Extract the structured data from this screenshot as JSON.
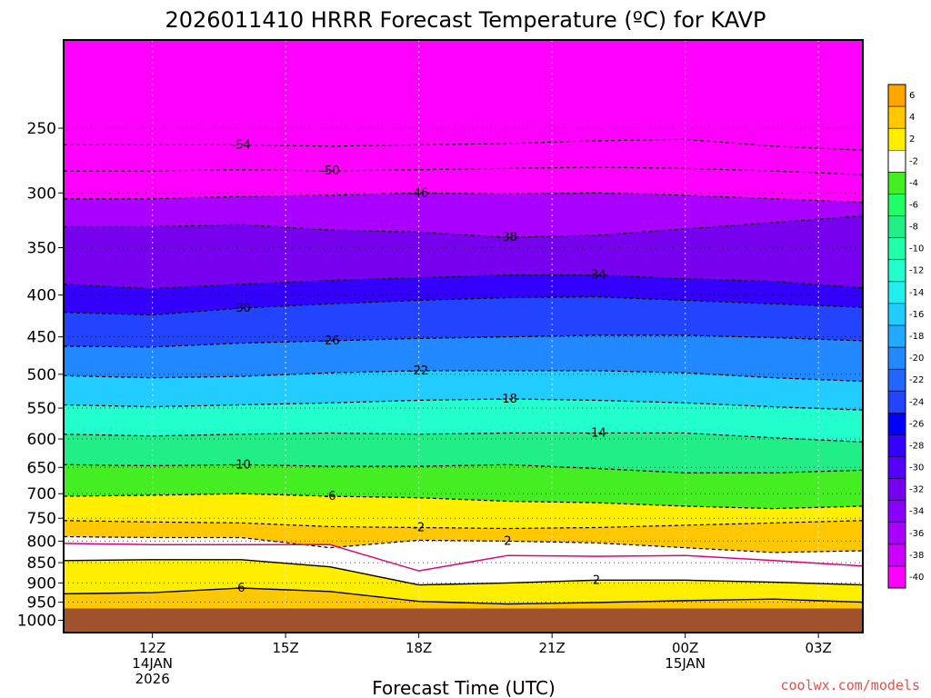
{
  "chart_data": {
    "type": "heatmap",
    "title": "2026011410 HRRR Forecast Temperature (ºC) for KAVP",
    "xlabel": "Forecast Time (UTC)",
    "ylabel": "",
    "credit": "coolwx.com/models",
    "x_ticks": [
      {
        "hour": 12,
        "lines": [
          "12Z",
          "14JAN",
          "2026"
        ]
      },
      {
        "hour": 15,
        "lines": [
          "15Z"
        ]
      },
      {
        "hour": 18,
        "lines": [
          "18Z"
        ]
      },
      {
        "hour": 21,
        "lines": [
          "21Z"
        ]
      },
      {
        "hour": 24,
        "lines": [
          "00Z",
          "15JAN"
        ]
      },
      {
        "hour": 27,
        "lines": [
          "03Z"
        ]
      }
    ],
    "xlim_hours": [
      10,
      28
    ],
    "y_scale": "log-pressure",
    "ylim_hpa": [
      1035,
      195
    ],
    "y_ticks": [
      250,
      300,
      350,
      400,
      450,
      500,
      550,
      600,
      650,
      700,
      750,
      800,
      850,
      900,
      950,
      1000
    ],
    "ground_level_hpa": 967,
    "ground_color": "#a0522d",
    "colorbar": {
      "labels": [
        "6",
        "4",
        "2",
        "-2",
        "-4",
        "-6",
        "-8",
        "-10",
        "-12",
        "-14",
        "-16",
        "-18",
        "-20",
        "-22",
        "-24",
        "-26",
        "-28",
        "-30",
        "-32",
        "-34",
        "-36",
        "-38",
        "-40"
      ],
      "colors": [
        "#ffa500",
        "#ffc800",
        "#ffee00",
        "#ffffff",
        "#44ee22",
        "#22ff66",
        "#22ee88",
        "#22ffaa",
        "#22ffcc",
        "#22eeee",
        "#22ccff",
        "#22aaff",
        "#2288ff",
        "#2266ff",
        "#2244ff",
        "#0000ff",
        "#3300ff",
        "#5500ff",
        "#7700ee",
        "#8800ff",
        "#aa00ff",
        "#cc00ff",
        "#ff00ff"
      ]
    },
    "isotherm_profiles": [
      {
        "temp": -54,
        "label": "-54",
        "p": [
          262,
          262,
          262,
          263,
          262,
          261,
          259,
          258,
          263,
          266
        ]
      },
      {
        "temp": -50,
        "label": "-50",
        "p": [
          282,
          282,
          281,
          282,
          281,
          280,
          279,
          280,
          282,
          285
        ]
      },
      {
        "temp": -46,
        "label": "-46",
        "p": [
          305,
          305,
          303,
          302,
          300,
          301,
          300,
          302,
          305,
          308
        ]
      },
      {
        "temp": -38,
        "label": "-38",
        "p": [
          330,
          330,
          328,
          333,
          335,
          340,
          338,
          332,
          326,
          320
        ]
      },
      {
        "temp": -34,
        "label": "-34",
        "p": [
          388,
          393,
          388,
          384,
          381,
          378,
          378,
          382,
          385,
          392
        ]
      },
      {
        "temp": -30,
        "label": "-30",
        "p": [
          420,
          423,
          415,
          410,
          406,
          403,
          402,
          406,
          410,
          414
        ]
      },
      {
        "temp": -26,
        "label": "-26",
        "p": [
          462,
          463,
          458,
          455,
          452,
          450,
          448,
          448,
          451,
          455
        ]
      },
      {
        "temp": -22,
        "label": "-22",
        "p": [
          502,
          505,
          503,
          498,
          495,
          495,
          495,
          498,
          505,
          510
        ]
      },
      {
        "temp": -18,
        "label": "-18",
        "p": [
          545,
          548,
          545,
          542,
          538,
          536,
          538,
          542,
          548,
          553
        ]
      },
      {
        "temp": -14,
        "label": "-14",
        "p": [
          592,
          595,
          592,
          590,
          592,
          590,
          590,
          590,
          598,
          605
        ]
      },
      {
        "temp": -10,
        "label": "-10",
        "p": [
          645,
          647,
          645,
          648,
          648,
          645,
          652,
          660,
          660,
          655
        ]
      },
      {
        "temp": -6,
        "label": "-6",
        "p": [
          705,
          703,
          700,
          705,
          708,
          715,
          718,
          725,
          730,
          725
        ]
      },
      {
        "temp": -2,
        "label": "-2",
        "p": [
          755,
          758,
          760,
          768,
          770,
          772,
          770,
          765,
          760,
          755
        ]
      },
      {
        "temp": 2,
        "label": "2",
        "p": [
          790,
          792,
          792,
          815,
          798,
          800,
          804,
          815,
          826,
          822
        ]
      }
    ],
    "freezing_line": {
      "temp": 0,
      "p": [
        805,
        808,
        808,
        808,
        870,
        833,
        835,
        833,
        845,
        858
      ]
    },
    "warm_layer_top": {
      "temp": 2,
      "label": "2",
      "p": [
        845,
        843,
        843,
        860,
        905,
        900,
        893,
        893,
        898,
        905
      ]
    },
    "inner_warm_contour": {
      "temp": 6,
      "label": "6",
      "p": [
        928,
        925,
        913,
        922,
        948,
        955,
        951,
        946,
        942,
        950
      ]
    }
  }
}
